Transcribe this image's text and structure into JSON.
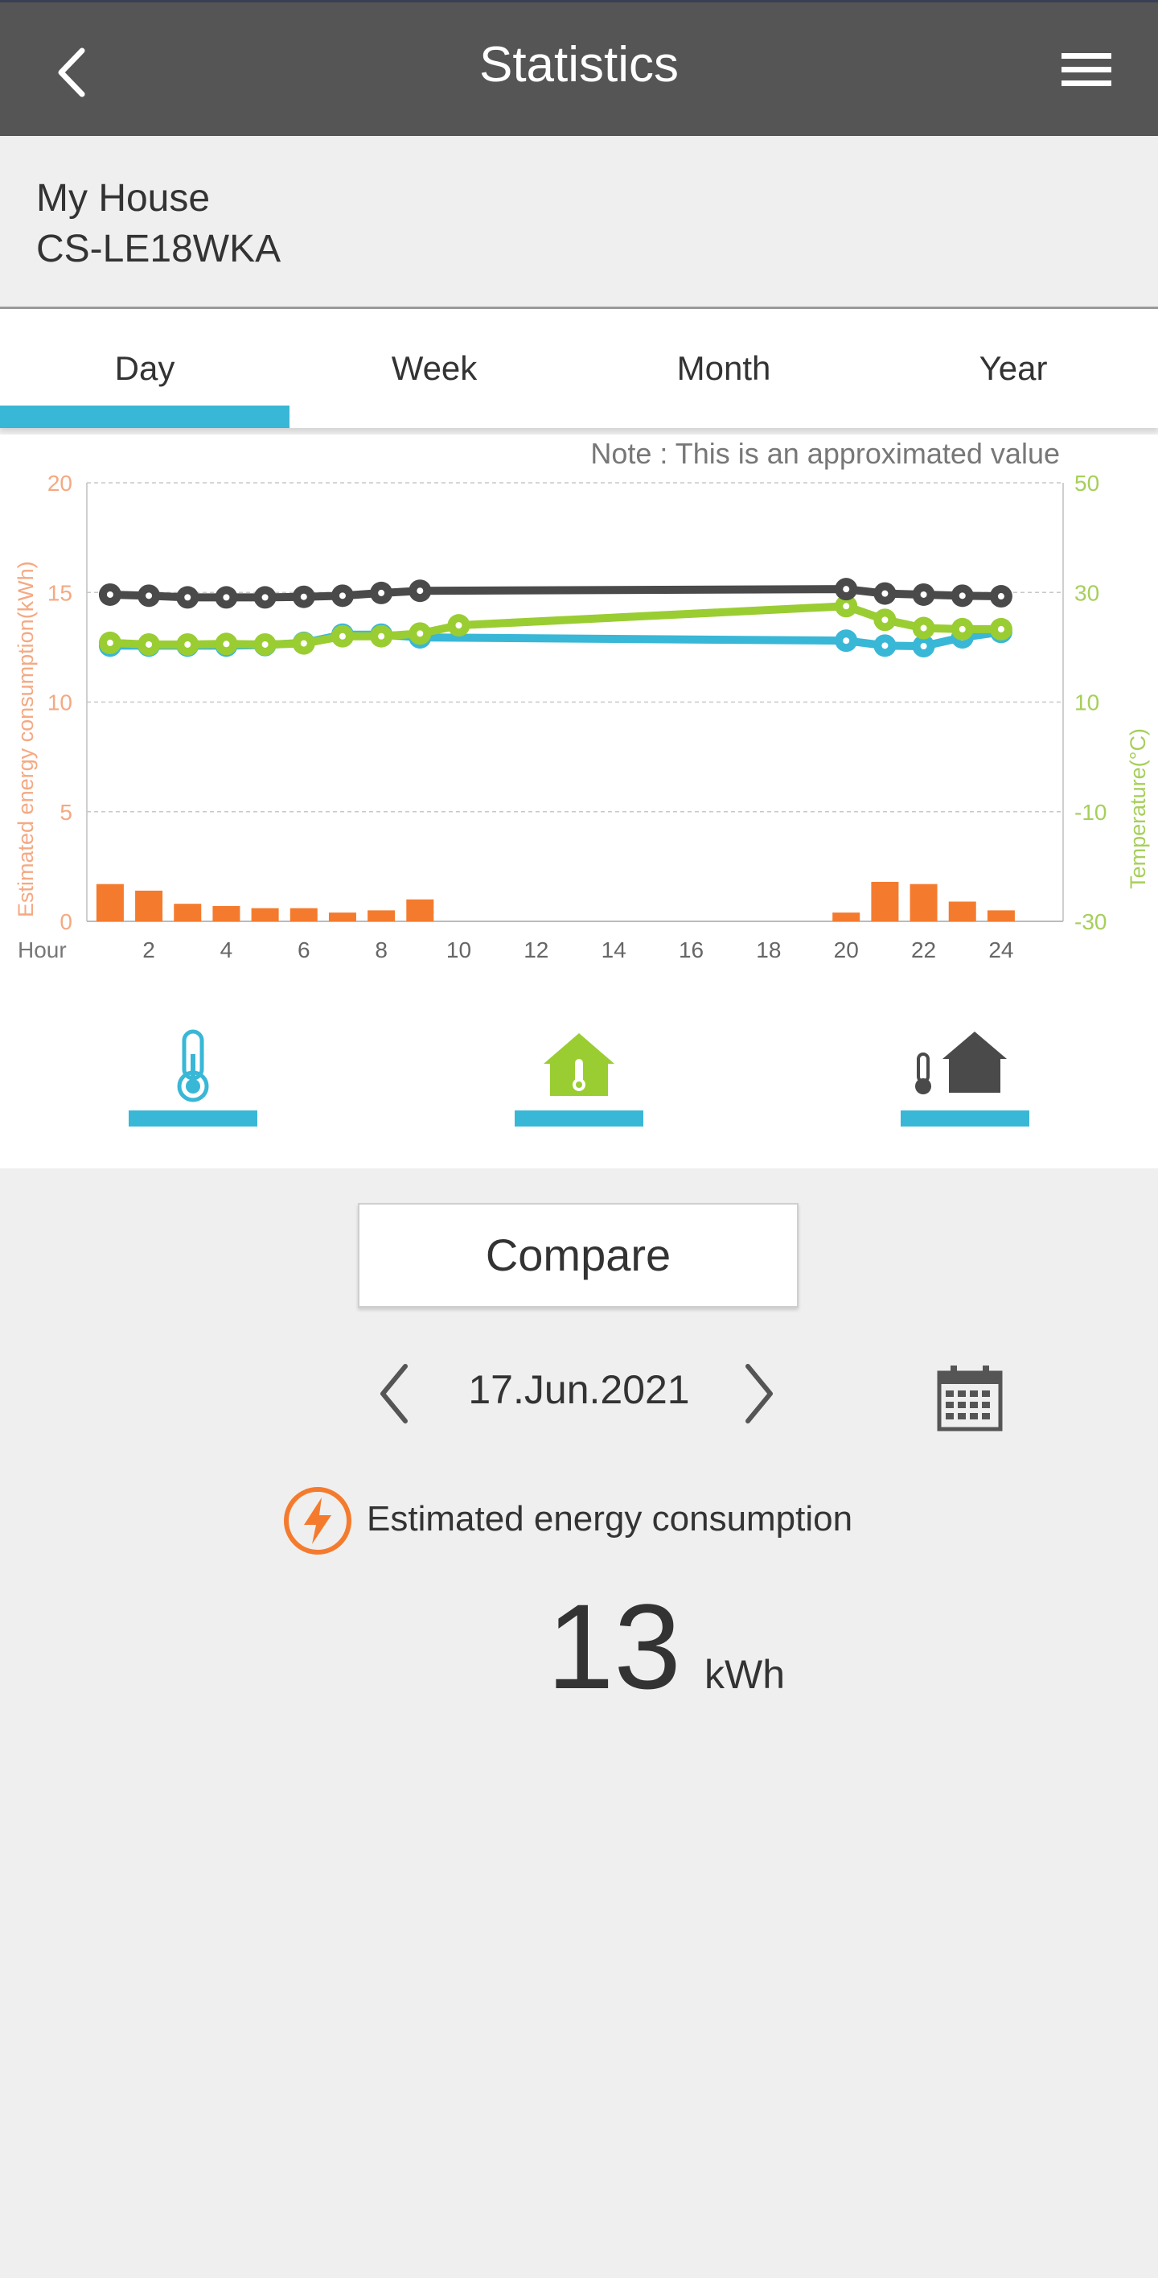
{
  "header": {
    "title": "Statistics",
    "back_icon": "chevron-left-icon",
    "menu_icon": "hamburger-menu-icon"
  },
  "device": {
    "location": "My House",
    "model": "CS-LE18WKA"
  },
  "tabs": [
    {
      "label": "Day",
      "selected": true
    },
    {
      "label": "Week",
      "selected": false
    },
    {
      "label": "Month",
      "selected": false
    },
    {
      "label": "Year",
      "selected": false
    }
  ],
  "colors": {
    "accent": "#39b7d6",
    "energy": "#f47b2e",
    "outdoor": "#39b7d6",
    "indoor": "#9acd32",
    "set": "#4a4a4a",
    "header": "#555555"
  },
  "chart_data": {
    "type": "bar+line",
    "note": "Note : This is an approximated value",
    "xlabel": "Hour",
    "ylabel_left": "Estimated energy consumption(kWh)",
    "ylabel_right": "Temperature(°C)",
    "x_ticks": [
      2,
      4,
      6,
      8,
      10,
      12,
      14,
      16,
      18,
      20,
      22,
      24
    ],
    "y_left_ticks": [
      0,
      5,
      10,
      15,
      20
    ],
    "y_right_ticks": [
      -30,
      -10,
      10,
      30,
      50
    ],
    "ylim_left": [
      0,
      20
    ],
    "ylim_right": [
      -30,
      50
    ],
    "xlim": [
      0.4,
      25.6
    ],
    "grid": true,
    "energy": {
      "hours": [
        1,
        2,
        3,
        4,
        5,
        6,
        7,
        8,
        9,
        20,
        21,
        22,
        23,
        24
      ],
      "values": [
        1.7,
        1.4,
        0.8,
        0.7,
        0.6,
        0.6,
        0.4,
        0.5,
        1.0,
        0.4,
        1.8,
        1.7,
        0.9,
        0.5
      ]
    },
    "series": [
      {
        "key": "set",
        "hours": [
          1,
          2,
          3,
          4,
          5,
          6,
          7,
          8,
          9,
          20,
          21,
          22,
          23,
          24
        ],
        "values": [
          29.6,
          29.4,
          29.1,
          29.1,
          29.1,
          29.2,
          29.4,
          29.9,
          30.3,
          30.6,
          29.8,
          29.6,
          29.4,
          29.3
        ]
      },
      {
        "key": "indoor",
        "hours": [
          1,
          2,
          3,
          4,
          5,
          6,
          7,
          8,
          9,
          10,
          20,
          21,
          22,
          23,
          24
        ],
        "values": [
          20.8,
          20.5,
          20.5,
          20.6,
          20.5,
          20.7,
          22.0,
          22.0,
          22.5,
          24.0,
          27.5,
          25.0,
          23.5,
          23.3,
          23.3
        ]
      },
      {
        "key": "outdoor",
        "hours": [
          1,
          2,
          3,
          4,
          5,
          6,
          7,
          8,
          9,
          20,
          21,
          22,
          23,
          24
        ],
        "values": [
          20.3,
          20.3,
          20.3,
          20.3,
          20.4,
          20.8,
          22.3,
          22.3,
          21.8,
          21.2,
          20.3,
          20.2,
          21.8,
          22.8
        ]
      }
    ]
  },
  "legend": [
    {
      "name": "outdoor",
      "icon": "thermometer-icon"
    },
    {
      "name": "indoor",
      "icon": "house-thermometer-icon"
    },
    {
      "name": "set",
      "icon": "thermometer-house-icon"
    }
  ],
  "compare_label": "Compare",
  "date": {
    "value": "17.Jun.2021",
    "prev_icon": "chevron-left-icon",
    "next_icon": "chevron-right-icon",
    "calendar_icon": "calendar-icon"
  },
  "energy": {
    "label": "Estimated energy consumption",
    "value": "13",
    "unit": "kWh",
    "icon": "lightning-icon"
  }
}
